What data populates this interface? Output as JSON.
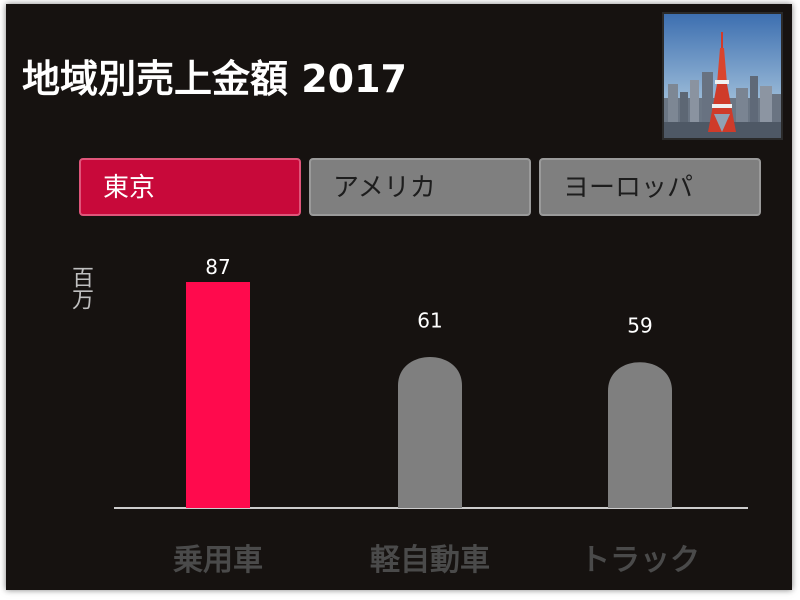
{
  "title": "地域別売上金額 2017",
  "tabs": [
    {
      "label": "東京",
      "active": true
    },
    {
      "label": "アメリカ",
      "active": false
    },
    {
      "label": "ヨーロッパ",
      "active": false
    }
  ],
  "chart_data": {
    "type": "bar",
    "title": "",
    "ylabel": "百万",
    "xlabel": "",
    "categories": [
      "乗用車",
      "軽自動車",
      "トラック"
    ],
    "values": [
      87,
      61,
      59
    ],
    "ylim": [
      0,
      87
    ],
    "grid": false,
    "colors": {
      "highlight": "#ff0a4d",
      "default": "#7f7f7f",
      "axis": "#cccccc",
      "label": "#ffffff",
      "category": "#4a4a4a"
    }
  }
}
